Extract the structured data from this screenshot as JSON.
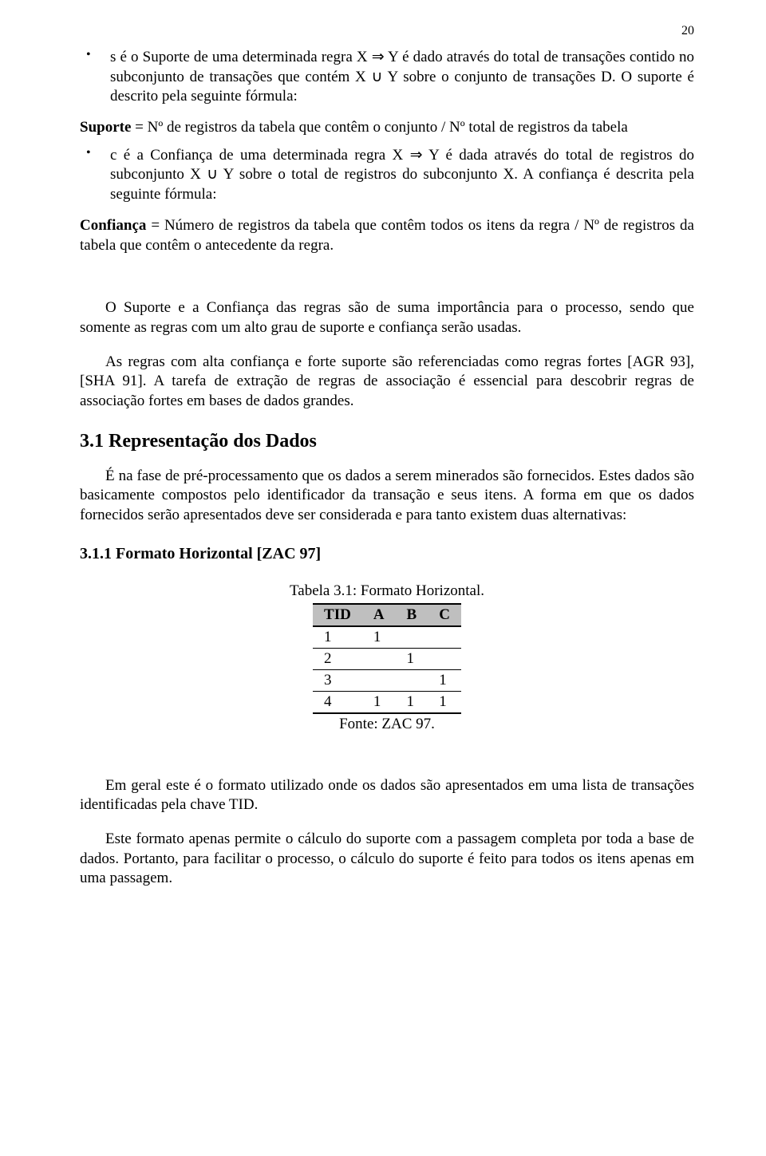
{
  "page_number": "20",
  "bullet1": "s é o Suporte de uma determinada regra X ⇒ Y é dado através do total de transações contido no subconjunto de transações que contém X ∪ Y sobre o conjunto de transações D. O suporte é descrito pela seguinte fórmula:",
  "formula1_label": "Suporte",
  "formula1_rest": " = Nº de registros da tabela que contêm o conjunto / Nº total de registros da tabela",
  "bullet2": "c é a Confiança de uma determinada regra X ⇒ Y é dada através do total de registros do subconjunto X ∪ Y sobre o total de registros do subconjunto X. A confiança é descrita pela seguinte fórmula:",
  "formula2_label": "Confiança",
  "formula2_rest": " = Número de registros da tabela que contêm todos os itens da regra / Nº de registros da tabela que contêm o antecedente da regra.",
  "para1": "O Suporte e a Confiança das regras são de suma importância para o processo, sendo que somente as regras com um alto grau de suporte e confiança serão usadas.",
  "para2": "As regras com alta confiança e forte suporte são referenciadas como regras fortes [AGR 93], [SHA 91]. A tarefa de extração de regras de associação é essencial para descobrir regras de associação fortes em bases de dados grandes.",
  "h2_text": "3.1  Representação dos Dados",
  "para3": "É na fase de pré-processamento que os dados a serem minerados são fornecidos. Estes dados são basicamente compostos pelo identificador da transação e seus itens. A forma em que os dados fornecidos serão apresentados deve ser considerada e para tanto existem duas alternativas:",
  "h3_text": "3.1.1   Formato Horizontal [ZAC 97]",
  "table": {
    "caption": "Tabela 3.1: Formato Horizontal.",
    "columns": [
      "TID",
      "A",
      "B",
      "C"
    ],
    "rows": [
      [
        "1",
        "1",
        "",
        ""
      ],
      [
        "2",
        "",
        "1",
        ""
      ],
      [
        "3",
        "",
        "",
        "1"
      ],
      [
        "4",
        "1",
        "1",
        "1"
      ]
    ],
    "source": "Fonte: ZAC 97.",
    "header_bg": "#bfbfbf"
  },
  "para4": "Em geral este é o formato utilizado onde os dados são apresentados em uma lista de transações identificadas pela chave TID.",
  "para5": "Este formato apenas permite o cálculo do suporte com a passagem completa por toda a base de dados. Portanto, para facilitar o processo, o cálculo do suporte é feito para todos os itens apenas em uma passagem."
}
